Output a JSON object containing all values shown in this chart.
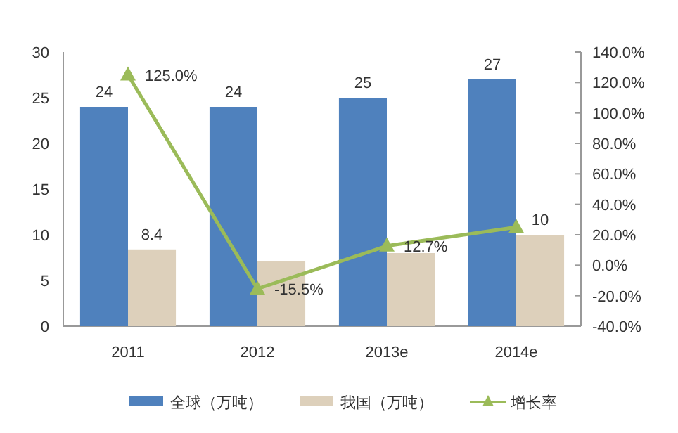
{
  "chart_data": {
    "type": "bar",
    "categories": [
      "2011",
      "2012",
      "2013e",
      "2014e"
    ],
    "series": [
      {
        "name": "全球（万吨）",
        "color": "#4f81bd",
        "values": [
          24,
          24,
          25,
          27
        ],
        "value_labels": [
          "24",
          "24",
          "25",
          "27"
        ]
      },
      {
        "name": "我国（万吨）",
        "color": "#ddd0bb",
        "values": [
          8.4,
          7.1,
          8.0,
          10
        ],
        "value_labels": [
          "8.4",
          null,
          null,
          "10"
        ]
      },
      {
        "name": "增长率",
        "type": "line",
        "axis": "y2",
        "color": "#9bbb59",
        "marker": "triangle",
        "values": [
          125.0,
          -15.5,
          12.7,
          25
        ],
        "value_labels": [
          "125.0%",
          "-15.5%",
          "12.7%",
          null
        ]
      }
    ],
    "ylim": [
      0,
      30
    ],
    "yticks": [
      0,
      5,
      10,
      15,
      20,
      25,
      30
    ],
    "y2lim": [
      -40,
      140
    ],
    "y2ticks": [
      {
        "value": -40,
        "label": "-40.0%"
      },
      {
        "value": -20,
        "label": "-20.0%"
      },
      {
        "value": 0,
        "label": "0.0%"
      },
      {
        "value": 20,
        "label": "20.0%"
      },
      {
        "value": 40,
        "label": "40.0%"
      },
      {
        "value": 60,
        "label": "60.0%"
      },
      {
        "value": 80,
        "label": "80.0%"
      },
      {
        "value": 100,
        "label": "100.0%"
      },
      {
        "value": 120,
        "label": "120.0%"
      },
      {
        "value": 140,
        "label": "140.0%"
      }
    ],
    "legend": "bottom",
    "grid": false
  }
}
